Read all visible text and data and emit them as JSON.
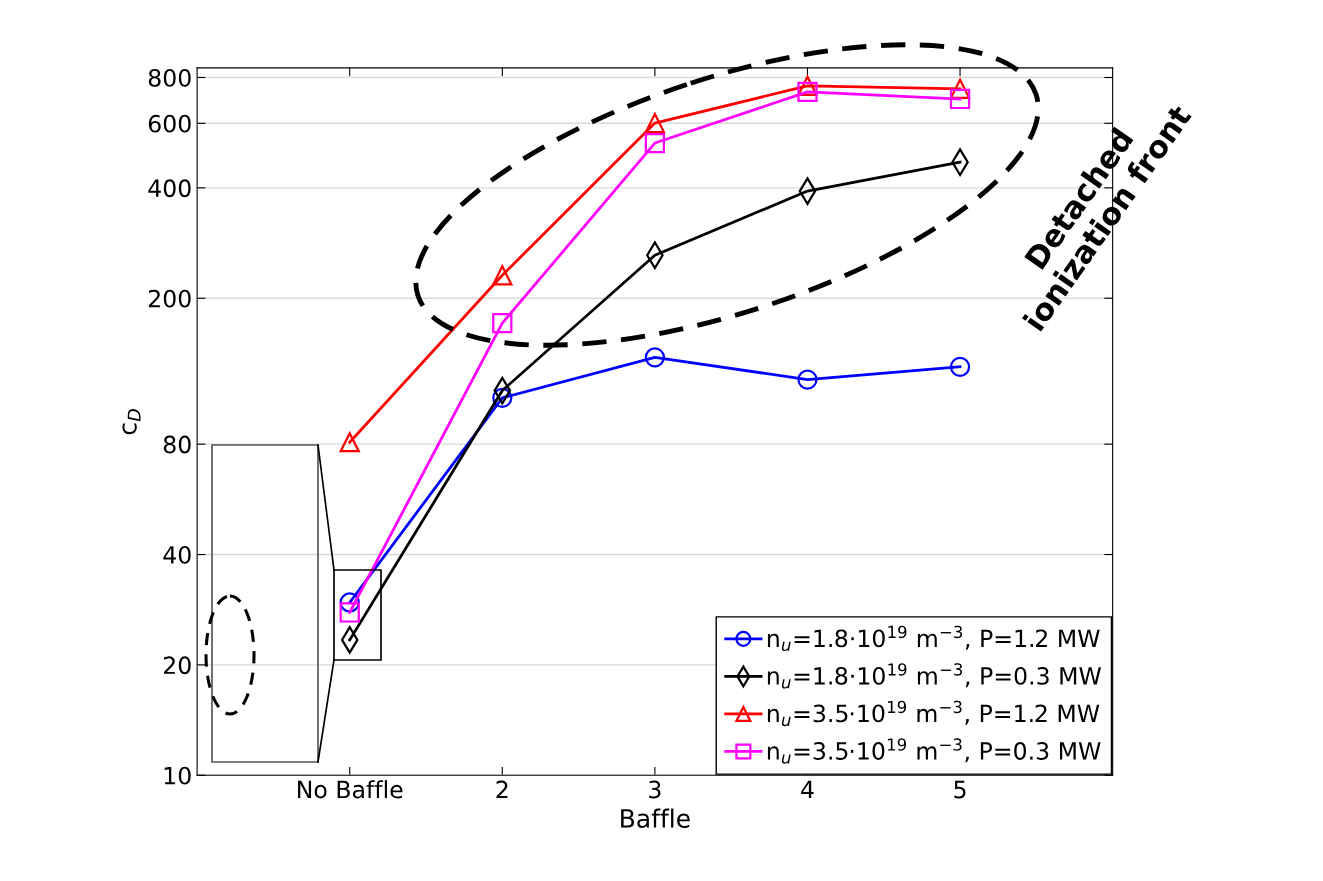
{
  "chart_data": {
    "type": "line",
    "xlabel": "Baffle",
    "ylabel": "c$_{D}$",
    "x": [
      1,
      2,
      3,
      4,
      5
    ],
    "xlim": [
      0,
      6
    ],
    "xticks": [
      {
        "value": 1,
        "label": "No Baffle"
      },
      2,
      3,
      4,
      5
    ],
    "log": "y",
    "ylim": [
      10,
      850
    ],
    "yticks": [
      10,
      20,
      40,
      80,
      200,
      400,
      600,
      800
    ],
    "grid": "y",
    "legend": "bottom right",
    "series": [
      {
        "name": "n$_{u}$=1.8·10$^{19}$ m$^{−3}$, P=1.2 MW",
        "color": "#0000ff",
        "marker": "circle",
        "values": [
          29.6,
          107,
          138,
          120,
          130
        ]
      },
      {
        "name": "n$_{u}$=1.8·10$^{19}$ m$^{−3}$, P=0.3 MW",
        "color": "#000000",
        "marker": "diamond",
        "values": [
          23.4,
          112,
          262,
          392,
          470
        ]
      },
      {
        "name": "n$_{u}$=3.5·10$^{19}$ m$^{−3}$, P=1.2 MW",
        "color": "#ff0000",
        "marker": "triangle",
        "values": [
          81,
          231,
          601,
          759,
          745
        ]
      },
      {
        "name": "n$_{u}$=3.5·10$^{19}$ m$^{−3}$, P=0.3 MW",
        "color": "#ff00ff",
        "marker": "square",
        "values": [
          27.8,
          171,
          530,
          731,
          699
        ]
      }
    ],
    "annotations": [
      "Detached\nionization front"
    ]
  }
}
